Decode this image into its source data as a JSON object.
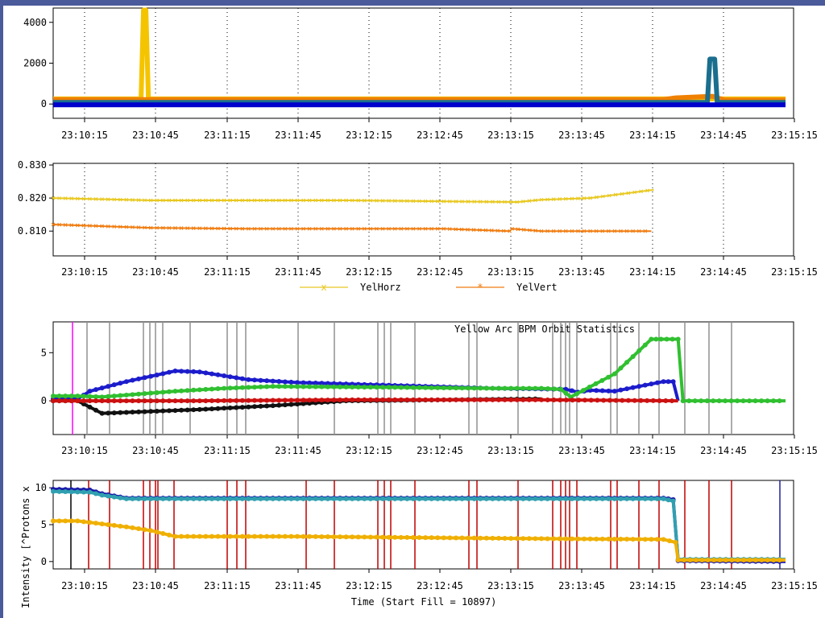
{
  "chart_data": [
    {
      "type": "line",
      "title": "",
      "xlabel": "",
      "ylabel": "",
      "x_ticks": [
        "23:10:15",
        "23:10:45",
        "23:11:15",
        "23:11:45",
        "23:12:15",
        "23:12:45",
        "23:13:15",
        "23:13:45",
        "23:14:15",
        "23:14:45",
        "23:15:15"
      ],
      "y_ticks": [
        "4000",
        "2000",
        "0"
      ],
      "ylim": [
        -700,
        4700
      ],
      "series": [
        {
          "color": "#f5c400",
          "x": [
            0,
            1,
            36,
            37,
            38,
            39,
            40,
            300
          ],
          "y": [
            250,
            250,
            250,
            4600,
            4600,
            250,
            250,
            250
          ]
        },
        {
          "color": "#f08000",
          "x": [
            0,
            1,
            250,
            255,
            270,
            275,
            300
          ],
          "y": [
            220,
            220,
            220,
            300,
            380,
            200,
            200
          ]
        },
        {
          "color": "#1a6e8e",
          "x": [
            0,
            1,
            268,
            269,
            271,
            272,
            300
          ],
          "y": [
            80,
            80,
            80,
            2200,
            2200,
            80,
            80
          ]
        },
        {
          "color": "#0000cc",
          "x": [
            0,
            300
          ],
          "y": [
            -40,
            -40
          ]
        }
      ]
    },
    {
      "type": "line",
      "title": "",
      "xlabel": "",
      "ylabel": "",
      "x_ticks": [
        "23:10:15",
        "23:10:45",
        "23:11:15",
        "23:11:45",
        "23:12:15",
        "23:12:45",
        "23:13:15",
        "23:13:45",
        "23:14:15",
        "23:14:45",
        "23:15:15"
      ],
      "y_ticks": [
        "0.830",
        "0.820",
        "0.810"
      ],
      "ylim": [
        0.8025,
        0.8305
      ],
      "legend": "bottom",
      "series": [
        {
          "name": "YelHorz",
          "color": "#e8c820",
          "marker": "x",
          "x": [
            0,
            40,
            80,
            120,
            160,
            190,
            200,
            220,
            246
          ],
          "y": [
            0.82,
            0.8193,
            0.8193,
            0.8193,
            0.819,
            0.8188,
            0.8195,
            0.82,
            0.8225
          ]
        },
        {
          "name": "YelVert",
          "color": "#f07c10",
          "marker": "*",
          "x": [
            0,
            40,
            80,
            120,
            160,
            187,
            188,
            200,
            245
          ],
          "y": [
            0.812,
            0.811,
            0.8107,
            0.8107,
            0.8107,
            0.81,
            0.8107,
            0.81,
            0.81
          ]
        }
      ]
    },
    {
      "type": "line",
      "title": "Yellow Arc BPM Orbit Statistics",
      "xlabel": "",
      "ylabel": "",
      "x_ticks": [
        "23:10:15",
        "23:10:45",
        "23:11:15",
        "23:11:45",
        "23:12:15",
        "23:12:45",
        "23:13:15",
        "23:13:45",
        "23:14:15",
        "23:14:45",
        "23:15:15"
      ],
      "y_ticks": [
        "5",
        "0"
      ],
      "ylim": [
        -3.5,
        8.2
      ],
      "series": [
        {
          "color": "#1c1ccc",
          "x": [
            0,
            10,
            15,
            30,
            50,
            60,
            80,
            100,
            140,
            180,
            210,
            215,
            220,
            230,
            240,
            250,
            254,
            256
          ],
          "y": [
            0.2,
            0.2,
            1.0,
            2.0,
            3.1,
            3.0,
            2.2,
            1.9,
            1.6,
            1.3,
            1.2,
            0.9,
            1.1,
            1.0,
            1.5,
            2.0,
            2.0,
            0.0
          ]
        },
        {
          "color": "#30c030",
          "x": [
            0,
            10,
            20,
            40,
            50,
            70,
            90,
            140,
            180,
            200,
            208,
            212,
            230,
            245,
            249,
            256,
            258,
            300
          ],
          "y": [
            0.5,
            0.5,
            0.4,
            0.8,
            1.0,
            1.3,
            1.5,
            1.4,
            1.3,
            1.3,
            1.2,
            0.4,
            2.8,
            6.4,
            6.4,
            6.4,
            0.0,
            0.0
          ]
        },
        {
          "color": "#111111",
          "x": [
            0,
            10,
            20,
            60,
            90,
            120,
            160,
            200
          ],
          "y": [
            0.0,
            0.0,
            -1.3,
            -0.9,
            -0.5,
            0.0,
            0.1,
            0.2
          ]
        },
        {
          "color": "#cc1111",
          "x": [
            0,
            10,
            60,
            120,
            200,
            256
          ],
          "y": [
            0.0,
            0.0,
            0.0,
            0.1,
            0.1,
            0.0
          ]
        }
      ]
    },
    {
      "type": "line",
      "title": "",
      "xlabel": "Time (Start Fill = 10897)",
      "ylabel": "Intensity [^Protons x",
      "x_ticks": [
        "23:10:15",
        "23:10:45",
        "23:11:15",
        "23:11:45",
        "23:12:15",
        "23:12:45",
        "23:13:15",
        "23:13:45",
        "23:14:15",
        "23:14:45",
        "23:15:15"
      ],
      "y_ticks": [
        "10",
        "5",
        "0"
      ],
      "ylim": [
        -1,
        11
      ],
      "series": [
        {
          "color": "#1a1aa8",
          "x": [
            0,
            15,
            20,
            30,
            40,
            250,
            254,
            256,
            300
          ],
          "y": [
            9.8,
            9.7,
            9.2,
            8.6,
            8.6,
            8.6,
            8.4,
            0.1,
            0.0
          ]
        },
        {
          "color": "#30a0b0",
          "x": [
            0,
            15,
            20,
            30,
            40,
            250,
            254,
            256,
            300
          ],
          "y": [
            9.5,
            9.4,
            9.0,
            8.5,
            8.5,
            8.5,
            8.2,
            0.3,
            0.3
          ]
        },
        {
          "color": "#f0b000",
          "x": [
            0,
            10,
            30,
            40,
            50,
            100,
            200,
            250,
            255,
            256,
            300
          ],
          "y": [
            5.5,
            5.5,
            4.7,
            4.2,
            3.4,
            3.4,
            3.1,
            3.0,
            2.6,
            0.2,
            0.2
          ]
        }
      ]
    }
  ]
}
